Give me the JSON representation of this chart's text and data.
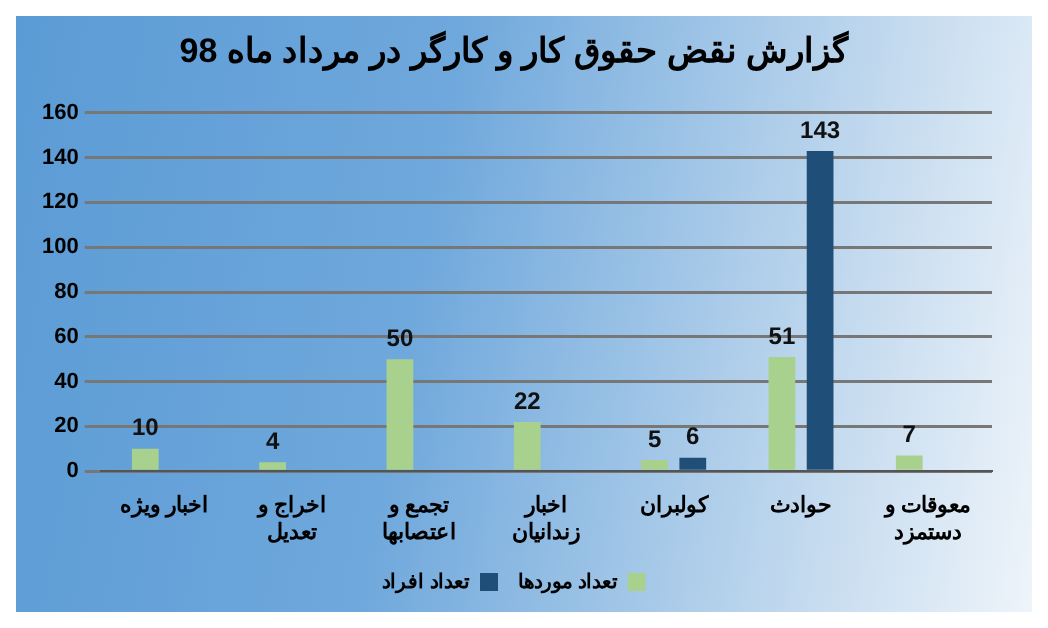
{
  "chart_data": {
    "type": "bar",
    "title": "گزارش نقض حقوق کار و کارگر در مرداد ماه 98",
    "categories": [
      "اخبار ویژه",
      "اخراج و تعدیل",
      "تجمع و اعتصابها",
      "اخبار زندانیان",
      "کولبران",
      "حوادث",
      "معوقات و دستمزد"
    ],
    "series": [
      {
        "name": "تعداد موردها",
        "color": "#a9d18e",
        "values": [
          10,
          4,
          50,
          22,
          5,
          51,
          7
        ]
      },
      {
        "name": "تعداد افراد",
        "color": "#1f4e79",
        "values": [
          null,
          null,
          null,
          null,
          6,
          143,
          null
        ]
      }
    ],
    "ylim": [
      0,
      160
    ],
    "yticks": [
      0,
      20,
      40,
      60,
      80,
      100,
      120,
      140,
      160
    ],
    "grid": "y",
    "legend": "bottom",
    "data_labels": true
  }
}
